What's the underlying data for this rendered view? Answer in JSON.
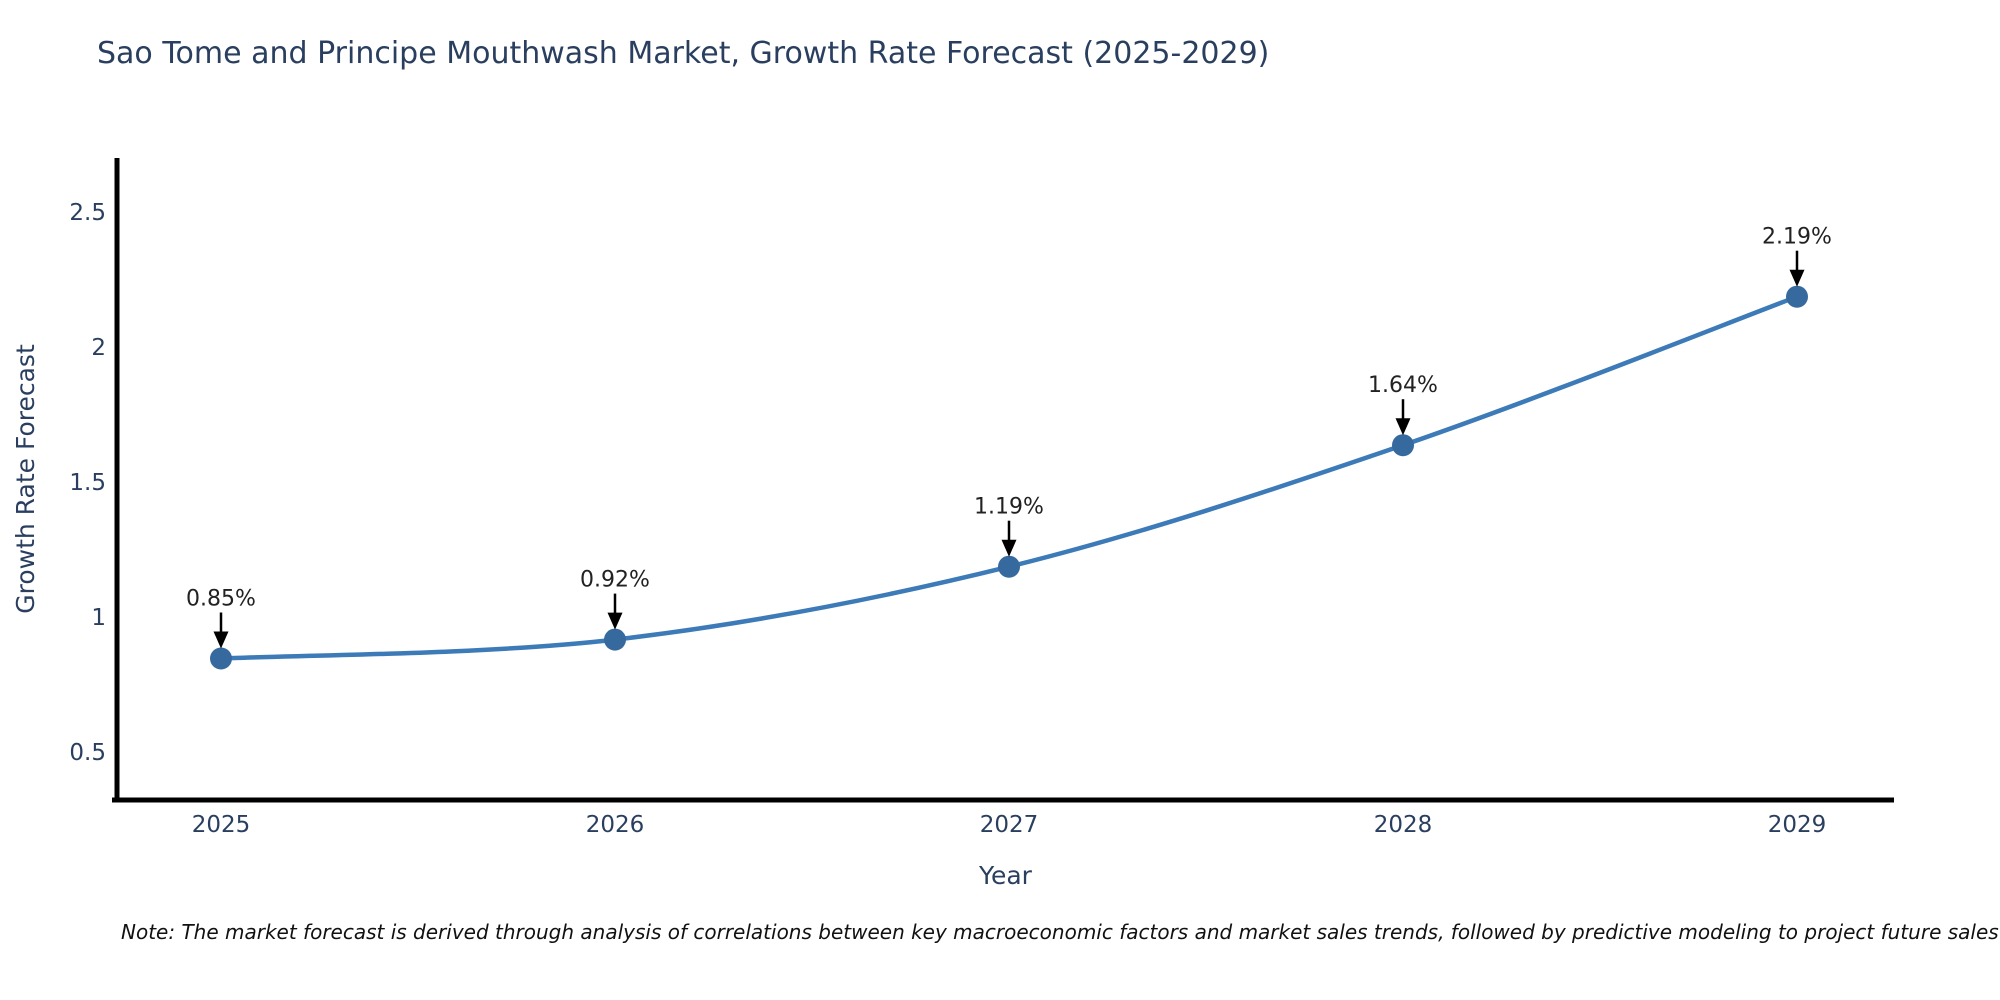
{
  "title": "Sao Tome and Principe Mouthwash Market, Growth Rate Forecast (2025-2029)",
  "note": "Note: The market forecast is derived through analysis of correlations between key macroeconomic factors and market sales trends, followed by predictive modeling to project future sales",
  "chart_data": {
    "type": "line",
    "title": "Sao Tome and Principe Mouthwash Market, Growth Rate Forecast (2025-2029)",
    "x": [
      2025,
      2026,
      2027,
      2028,
      2029
    ],
    "values": [
      0.85,
      0.92,
      1.19,
      1.64,
      2.19
    ],
    "point_labels": [
      "0.85%",
      "0.92%",
      "1.19%",
      "1.64%",
      "2.19%"
    ],
    "xlabel": "Year",
    "ylabel": "Growth Rate Forecast",
    "yticks": [
      0.5,
      1,
      1.5,
      2,
      2.5
    ],
    "ylim": [
      0.33,
      2.73
    ],
    "grid": false,
    "legend": false,
    "line_shape": "spline",
    "annotation_style": "black-down-arrows",
    "colors": {
      "line": "#3d7ab8",
      "marker": "#36699e",
      "axis": "#000000",
      "text": "#2a3f5f",
      "annotation_text": "#222222",
      "arrow": "#000000",
      "background": "#ffffff"
    }
  }
}
